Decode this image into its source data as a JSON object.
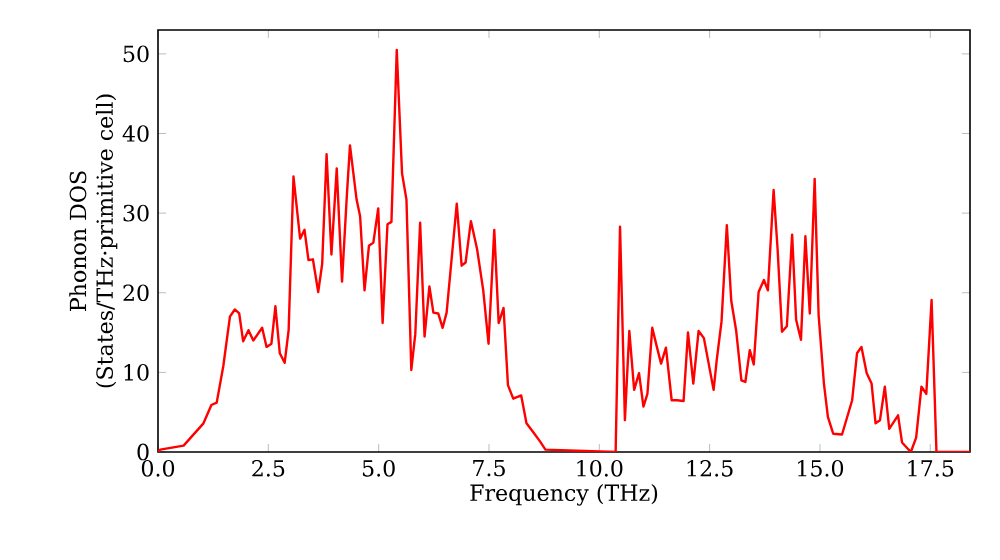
{
  "chart_data": {
    "type": "line",
    "xlabel": "Frequency (THz)",
    "ylabel": "Phonon DOS\n(States/THz·primitive cell)",
    "xlim": [
      0,
      18.4
    ],
    "ylim": [
      0,
      53
    ],
    "xticks": [
      {
        "value": 0,
        "label": "0.0"
      },
      2.5,
      {
        "value": 5,
        "label": "5.0"
      },
      7.5,
      {
        "value": 10,
        "label": "10.0"
      },
      12.5,
      {
        "value": 15,
        "label": "15.0"
      },
      17.5
    ],
    "yticks": [
      0,
      10,
      20,
      30,
      40,
      50
    ],
    "grid": false,
    "marker": "none",
    "line_style": "solid",
    "series": [
      {
        "color": "#ff0000",
        "x": [
          0,
          0.05,
          0.58,
          1.03,
          1.21,
          1.33,
          1.48,
          1.63,
          1.74,
          1.84,
          1.93,
          2.05,
          2.16,
          2.36,
          2.46,
          2.57,
          2.66,
          2.76,
          2.87,
          2.96,
          3.07,
          3.22,
          3.32,
          3.41,
          3.51,
          3.63,
          3.72,
          3.82,
          3.93,
          4.05,
          4.17,
          4.28,
          4.35,
          4.5,
          4.58,
          4.68,
          4.78,
          4.88,
          4.99,
          5.09,
          5.2,
          5.29,
          5.41,
          5.53,
          5.63,
          5.74,
          5.83,
          5.94,
          6.04,
          6.15,
          6.24,
          6.35,
          6.45,
          6.54,
          6.77,
          6.88,
          6.97,
          7.09,
          7.23,
          7.37,
          7.49,
          7.62,
          7.72,
          7.83,
          7.93,
          8.05,
          8.23,
          8.35,
          8.5,
          8.66,
          8.78,
          10.37,
          10.47,
          10.58,
          10.68,
          10.79,
          10.9,
          11,
          11.09,
          11.2,
          11.3,
          11.4,
          11.51,
          11.64,
          11.76,
          11.91,
          12.01,
          12.13,
          12.25,
          12.37,
          12.59,
          12.66,
          12.77,
          12.89,
          12.99,
          13.1,
          13.22,
          13.31,
          13.41,
          13.5,
          13.61,
          13.73,
          13.82,
          13.95,
          14.04,
          14.14,
          14.25,
          14.37,
          14.46,
          14.57,
          14.67,
          14.77,
          14.88,
          14.97,
          15.09,
          15.18,
          15.3,
          15.5,
          15.73,
          15.84,
          15.94,
          16.06,
          16.17,
          16.26,
          16.36,
          16.47,
          16.57,
          16.77,
          16.86,
          17.06,
          17.18,
          17.3,
          17.41,
          17.53,
          17.64,
          18.4
        ],
        "values": [
          0,
          0.3,
          0.8,
          3.6,
          5.9,
          6.2,
          10.8,
          17,
          17.9,
          17.4,
          13.9,
          15.3,
          14,
          15.6,
          13.2,
          13.6,
          18.3,
          12.4,
          11.2,
          15.3,
          34.6,
          26.8,
          27.9,
          24.1,
          24.2,
          20.1,
          23.6,
          37.4,
          24.8,
          35.6,
          21.4,
          32.3,
          38.5,
          31.7,
          29.6,
          20.3,
          25.9,
          26.3,
          30.6,
          16.2,
          28.6,
          28.9,
          50.5,
          35,
          31.7,
          10.3,
          14.8,
          28.8,
          14.5,
          20.8,
          17.5,
          17.4,
          15.6,
          17.5,
          31.2,
          23.4,
          23.8,
          29,
          25.5,
          20.3,
          13.6,
          27.9,
          16.2,
          18.1,
          8.4,
          6.7,
          7.1,
          3.6,
          2.5,
          1.3,
          0.3,
          0,
          28.3,
          4,
          15.2,
          7.8,
          9.9,
          5.7,
          7.3,
          15.6,
          13.3,
          11.1,
          13.1,
          6.5,
          6.5,
          6.4,
          15,
          8.6,
          15.2,
          14.3,
          7.8,
          11.5,
          16.4,
          28.5,
          19,
          15.3,
          9,
          8.8,
          12.8,
          11,
          20.1,
          21.6,
          20.3,
          32.9,
          25.5,
          15.1,
          15.8,
          27.3,
          16.6,
          14.1,
          27.1,
          17.4,
          34.3,
          17.2,
          8.6,
          4.4,
          2.3,
          2.2,
          6.5,
          12.4,
          13.2,
          9.9,
          8.6,
          3.6,
          4,
          8.2,
          2.9,
          4.6,
          1.2,
          0,
          1.8,
          8.2,
          7.3,
          19.1,
          0,
          0
        ]
      }
    ]
  }
}
